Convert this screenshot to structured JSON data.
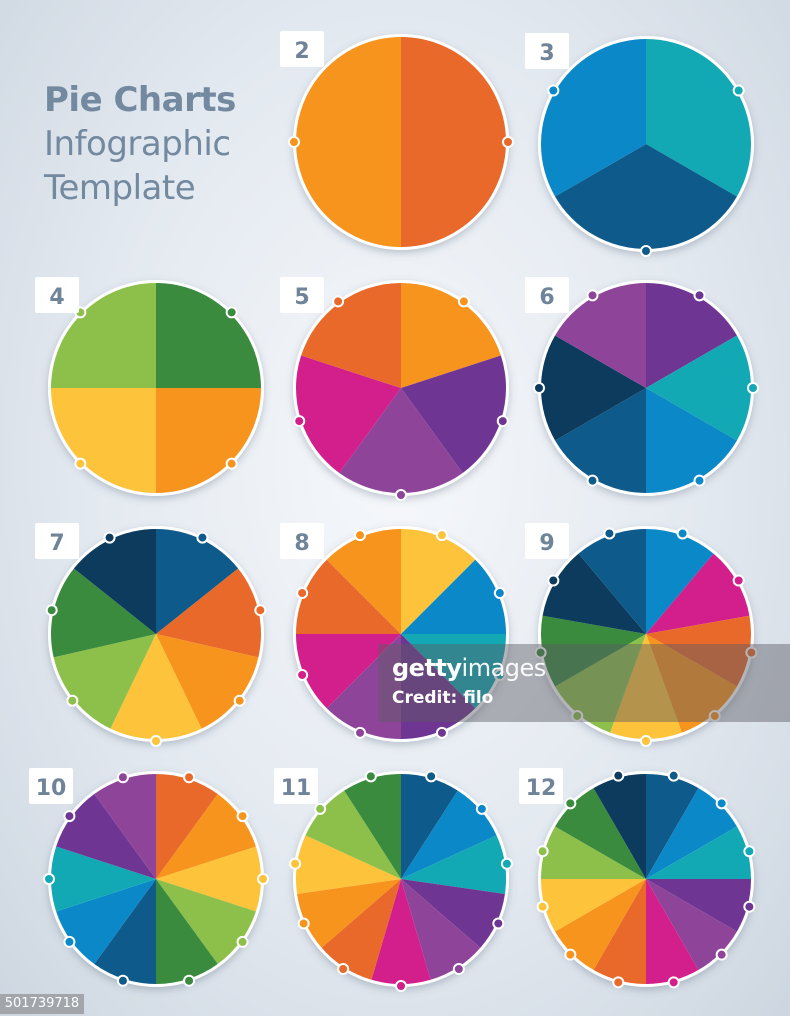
{
  "title": {
    "line1": "Pie Charts",
    "line2": "Infographic",
    "line3": "Template"
  },
  "palette": {
    "dark_orange": "#e8692a",
    "orange": "#f7941d",
    "yellow": "#fdc33b",
    "light_green": "#8dc04a",
    "green": "#3a8b3e",
    "navy": "#0c3b5e",
    "dark_blue": "#0e5a8a",
    "blue": "#0b88c7",
    "teal": "#12a9b5",
    "purple": "#6f3593",
    "violet": "#8e4599",
    "magenta": "#d31f8c"
  },
  "pies": [
    {
      "label": "2",
      "slices": [
        "#e8692a",
        "#f7941d"
      ]
    },
    {
      "label": "3",
      "slices": [
        "#12a9b5",
        "#0e5a8a",
        "#0b88c7"
      ]
    },
    {
      "label": "4",
      "slices": [
        "#3a8b3e",
        "#f7941d",
        "#fdc33b",
        "#8dc04a"
      ]
    },
    {
      "label": "5",
      "slices": [
        "#f7941d",
        "#6f3593",
        "#8e4599",
        "#d31f8c",
        "#e8692a"
      ]
    },
    {
      "label": "6",
      "slices": [
        "#6f3593",
        "#12a9b5",
        "#0b88c7",
        "#0e5a8a",
        "#0c3b5e",
        "#8e4599"
      ]
    },
    {
      "label": "7",
      "slices": [
        "#0e5a8a",
        "#e8692a",
        "#f7941d",
        "#fdc33b",
        "#8dc04a",
        "#3a8b3e",
        "#0c3b5e"
      ]
    },
    {
      "label": "8",
      "slices": [
        "#fdc33b",
        "#0b88c7",
        "#12a9b5",
        "#6f3593",
        "#8e4599",
        "#d31f8c",
        "#e8692a",
        "#f7941d"
      ]
    },
    {
      "label": "9",
      "slices": [
        "#0b88c7",
        "#d31f8c",
        "#e8692a",
        "#f7941d",
        "#fdc33b",
        "#8dc04a",
        "#3a8b3e",
        "#0c3b5e",
        "#0e5a8a"
      ]
    },
    {
      "label": "10",
      "slices": [
        "#e8692a",
        "#f7941d",
        "#fdc33b",
        "#8dc04a",
        "#3a8b3e",
        "#0e5a8a",
        "#0b88c7",
        "#12a9b5",
        "#6f3593",
        "#8e4599"
      ]
    },
    {
      "label": "11",
      "slices": [
        "#0e5a8a",
        "#0b88c7",
        "#12a9b5",
        "#6f3593",
        "#8e4599",
        "#d31f8c",
        "#e8692a",
        "#f7941d",
        "#fdc33b",
        "#8dc04a",
        "#3a8b3e"
      ]
    },
    {
      "label": "12",
      "slices": [
        "#0e5a8a",
        "#0b88c7",
        "#12a9b5",
        "#6f3593",
        "#8e4599",
        "#d31f8c",
        "#e8692a",
        "#f7941d",
        "#fdc33b",
        "#8dc04a",
        "#3a8b3e",
        "#0c3b5e"
      ]
    }
  ],
  "watermark": {
    "brand_bold": "getty",
    "brand_light": "images",
    "credit": "Credit: filo"
  },
  "image_id": "501739718"
}
